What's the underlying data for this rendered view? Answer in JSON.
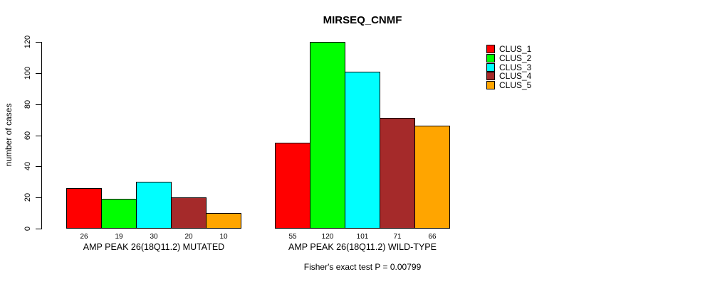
{
  "chart_data": {
    "type": "bar",
    "title": "MIRSEQ_CNMF",
    "ylabel": "number of cases",
    "ylim": [
      0,
      120
    ],
    "yticks": [
      0,
      20,
      40,
      60,
      80,
      100,
      120
    ],
    "grid": false,
    "legend_position": "top-right",
    "bar_border_color": "#000000",
    "background_color": "#ffffff",
    "categories": [
      "AMP PEAK 26(18Q11.2) MUTATED",
      "AMP PEAK 26(18Q11.2) WILD-TYPE"
    ],
    "series": [
      {
        "name": "CLUS_1",
        "color": "#ff0000",
        "values": [
          26,
          55
        ]
      },
      {
        "name": "CLUS_2",
        "color": "#00ff00",
        "values": [
          19,
          120
        ]
      },
      {
        "name": "CLUS_3",
        "color": "#00ffff",
        "values": [
          30,
          101
        ]
      },
      {
        "name": "CLUS_4",
        "color": "#a52a2a",
        "values": [
          20,
          71
        ]
      },
      {
        "name": "CLUS_5",
        "color": "#ffa500",
        "values": [
          10,
          66
        ]
      }
    ],
    "annotation": "Fisher's exact test P = 0.00799"
  }
}
